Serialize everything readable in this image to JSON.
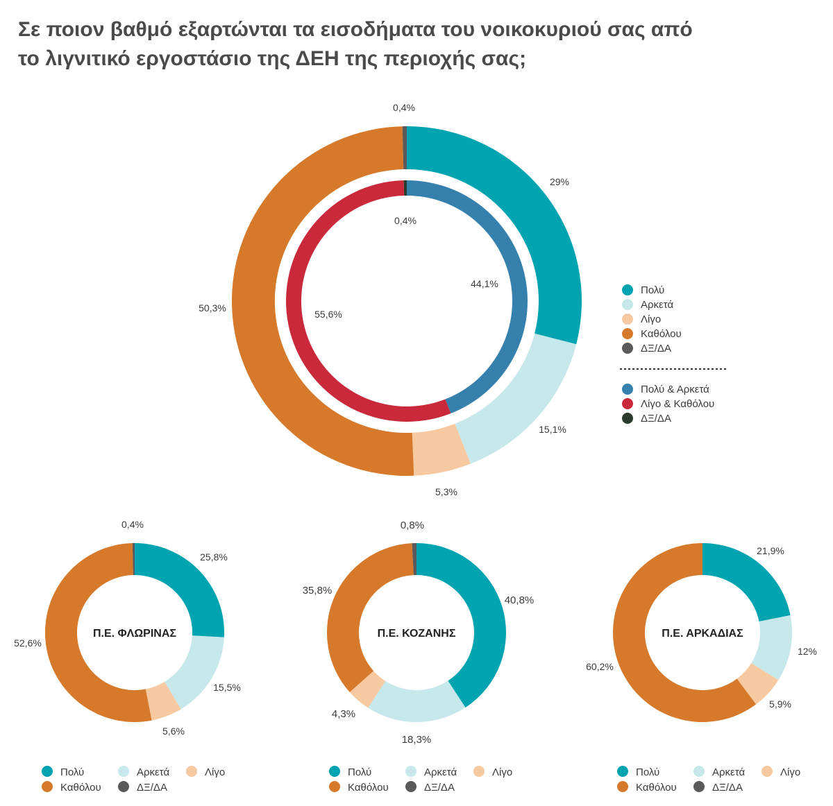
{
  "title": {
    "line1": "Σε ποιον βαθμό εξαρτώνται τα εισοδήματα του νοικοκυριού σας από",
    "line2": "το λιγνιτικό εργοστάσιο της ΔΕΗ της περιοχής σας;"
  },
  "colors": {
    "polu": "#00a3b0",
    "arketa": "#c6e8eb",
    "ligo": "#f7c9a0",
    "katholou": "#d6792a",
    "dxda": "#5a5a5a",
    "polu_arketa": "#3580ad",
    "ligo_katholou": "#c9293a",
    "dxda_dark": "#2a3a2c"
  },
  "legend_main": {
    "items": [
      {
        "label": "Πολύ",
        "color": "#00a3b0"
      },
      {
        "label": "Αρκετά",
        "color": "#c6e8eb"
      },
      {
        "label": "Λίγο",
        "color": "#f7c9a0"
      },
      {
        "label": "Καθόλου",
        "color": "#d6792a"
      },
      {
        "label": "ΔΞ/ΔΑ",
        "color": "#5a5a5a"
      }
    ],
    "items2": [
      {
        "label": "Πολύ & Αρκετά",
        "color": "#3580ad"
      },
      {
        "label": "Λίγο & Καθόλου",
        "color": "#c9293a"
      },
      {
        "label": "ΔΞ/ΔΑ",
        "color": "#2a3a2c"
      }
    ]
  },
  "legend_small": {
    "row1": [
      {
        "label": "Πολύ",
        "color": "#00a3b0"
      },
      {
        "label": "Αρκετά",
        "color": "#c6e8eb"
      },
      {
        "label": "Λίγο",
        "color": "#f7c9a0"
      }
    ],
    "row2": [
      {
        "label": "Καθόλου",
        "color": "#d6792a"
      },
      {
        "label": "ΔΞ/ΔΑ",
        "color": "#5a5a5a"
      }
    ]
  },
  "chart_data": [
    {
      "type": "pie",
      "subtype": "donut",
      "categories": [
        "Πολύ",
        "Αρκετά",
        "Λίγο",
        "Καθόλου",
        "ΔΞ/ΔΑ"
      ],
      "values": [
        29,
        15.1,
        5.3,
        50.3,
        0.4
      ],
      "labels": [
        "29%",
        "15,1%",
        "5,3%",
        "50,3%",
        "0,4%"
      ]
    },
    {
      "type": "pie",
      "subtype": "donut-inner",
      "categories": [
        "Πολύ & Αρκετά",
        "Λίγο & Καθόλου",
        "ΔΞ/ΔΑ"
      ],
      "values": [
        44.1,
        55.6,
        0.4
      ],
      "labels": [
        "44,1%",
        "55,6%",
        "0,4%"
      ]
    },
    {
      "type": "pie",
      "subtype": "donut",
      "center_label": "Π.Ε. ΦΛΩΡΙΝΑΣ",
      "categories": [
        "Πολύ",
        "Αρκετά",
        "Λίγο",
        "Καθόλου",
        "ΔΞ/ΔΑ"
      ],
      "values": [
        25.8,
        15.5,
        5.6,
        52.6,
        0.4
      ],
      "labels": [
        "25,8%",
        "15,5%",
        "5,6%",
        "52,6%",
        "0,4%"
      ]
    },
    {
      "type": "pie",
      "subtype": "donut",
      "center_label": "Π.Ε. ΚΟΖΑΝΗΣ",
      "categories": [
        "Πολύ",
        "Αρκετά",
        "Λίγο",
        "Καθόλου",
        "ΔΞ/ΔΑ"
      ],
      "values": [
        40.8,
        18.3,
        4.3,
        35.8,
        0.8
      ],
      "labels": [
        "40,8%",
        "18,3%",
        "4,3%",
        "35,8%",
        "0,8%"
      ]
    },
    {
      "type": "pie",
      "subtype": "donut",
      "center_label": "Π.Ε. ΑΡΚΑΔΙΑΣ",
      "categories": [
        "Πολύ",
        "Αρκετά",
        "Λίγο",
        "Καθόλου"
      ],
      "values": [
        21.9,
        12,
        5.9,
        60.2
      ],
      "labels": [
        "21,9%",
        "12%",
        "5,9%",
        "60,2%"
      ]
    }
  ]
}
